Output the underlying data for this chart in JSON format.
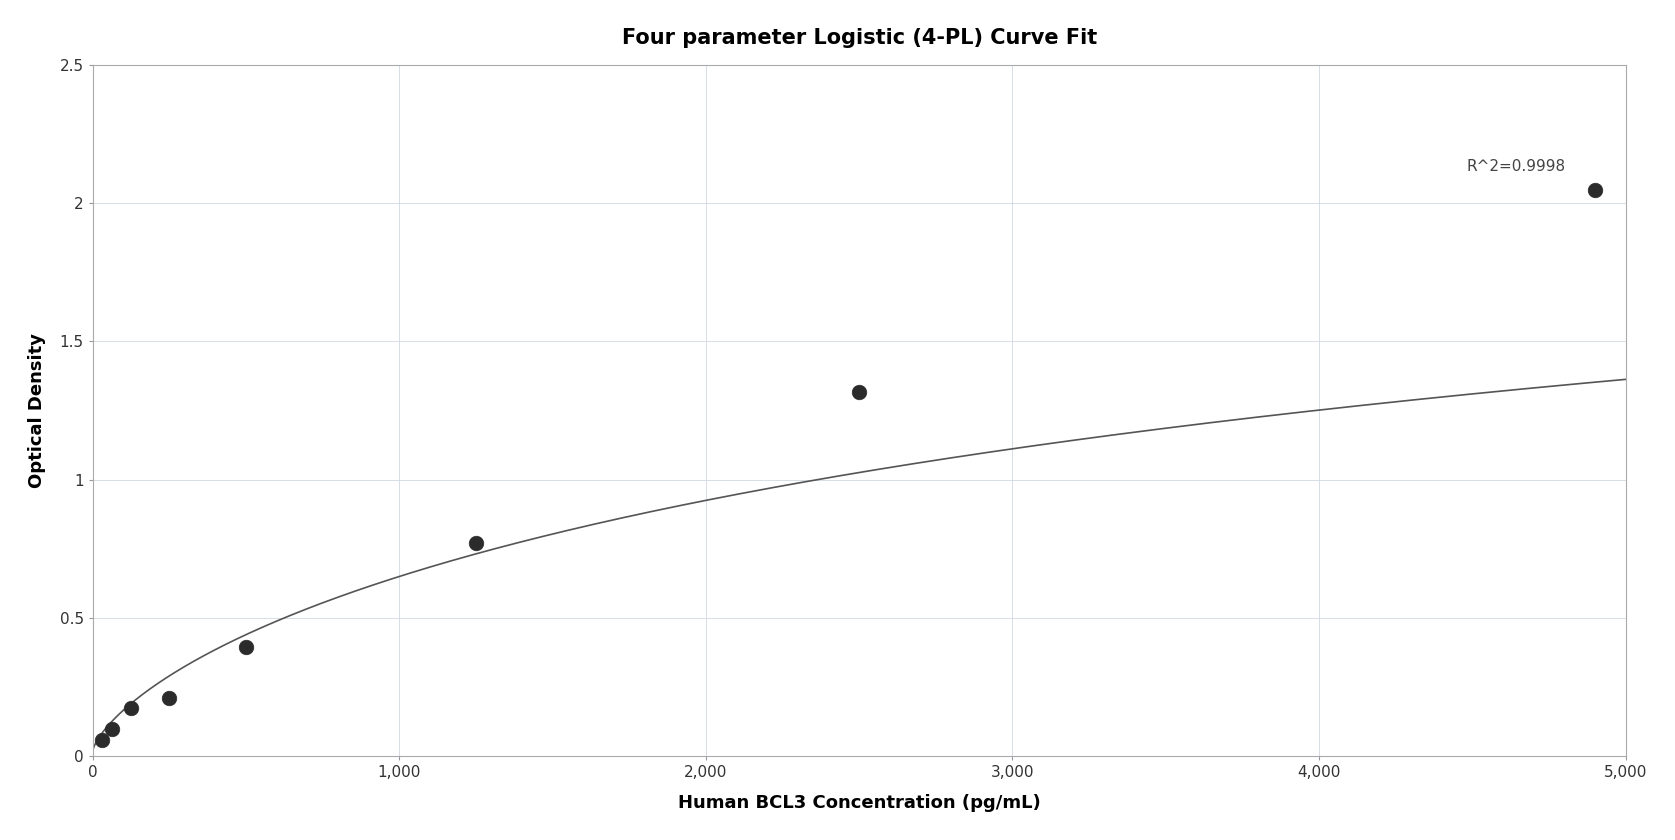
{
  "title": "Four parameter Logistic (4-PL) Curve Fit",
  "xlabel": "Human BCL3 Concentration (pg/mL)",
  "ylabel": "Optical Density",
  "annotation": "R^2=0.9998",
  "data_x": [
    31.25,
    62.5,
    125,
    250,
    500,
    1250,
    2500,
    4900
  ],
  "data_y": [
    0.058,
    0.1,
    0.175,
    0.21,
    0.395,
    0.77,
    1.315,
    2.045
  ],
  "xlim": [
    0,
    5000
  ],
  "ylim": [
    0,
    2.5
  ],
  "xticks": [
    0,
    1000,
    2000,
    3000,
    4000,
    5000
  ],
  "yticks": [
    0,
    0.5,
    1.0,
    1.5,
    2.0,
    2.5
  ],
  "marker_color": "#2b2b2b",
  "line_color": "#555555",
  "grid_color": "#d0d8e4",
  "background_color": "#ffffff",
  "title_fontsize": 15,
  "label_fontsize": 13,
  "tick_fontsize": 11,
  "annotation_fontsize": 11
}
